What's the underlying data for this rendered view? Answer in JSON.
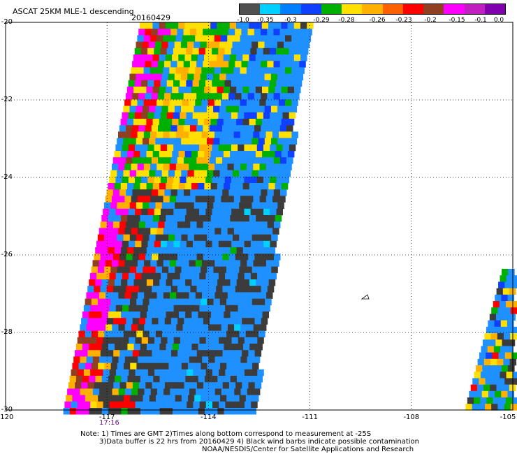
{
  "header": {
    "title": "ASCAT 25KM MLE-1 descending",
    "date": "20160429"
  },
  "legend": {
    "colors": [
      "#505050",
      "#00d0ff",
      "#0080ff",
      "#1040ff",
      "#00b000",
      "#ffe000",
      "#ffb000",
      "#ff6000",
      "#ff0000",
      "#904020",
      "#ff00ff",
      "#c020c0",
      "#8000b0"
    ],
    "labels": [
      "-1.0",
      "-0.35",
      "-0.3",
      "-0.29",
      "-0.28",
      "-0.26",
      "-0.23",
      "-0.2",
      "-0.15",
      "-0.1",
      "0.0"
    ]
  },
  "axes": {
    "y_labels": [
      "-20",
      "-22",
      "-24",
      "-26",
      "-28",
      "-30"
    ],
    "x_labels": [
      "-120",
      "-117",
      "-114",
      "-111",
      "-108",
      "-105"
    ]
  },
  "time_label": "17:16",
  "notes": {
    "line1": "Note: 1) Times are GMT 2)Times along bottom correspond to measurement at -25S",
    "line2": "3)Data buffer is 22 hrs from 20160429 4) Black wind barbs indicate possible contamination",
    "line3": "NOAA/NESDIS/Center for Satellite Applications and Research"
  },
  "map_data": {
    "lat_range": [
      -30,
      -20
    ],
    "lon_range": [
      -120,
      -105
    ],
    "palette": {
      "dark": "#3c3c3c",
      "blue": "#1e90ff",
      "darkblue": "#1040ff",
      "green": "#00b000",
      "yellow": "#ffe000",
      "orange": "#ffb000",
      "red": "#ff0000",
      "brown": "#904020",
      "magenta": "#ff00ff",
      "purple": "#8000b0",
      "cyan": "#00d0ff"
    }
  }
}
